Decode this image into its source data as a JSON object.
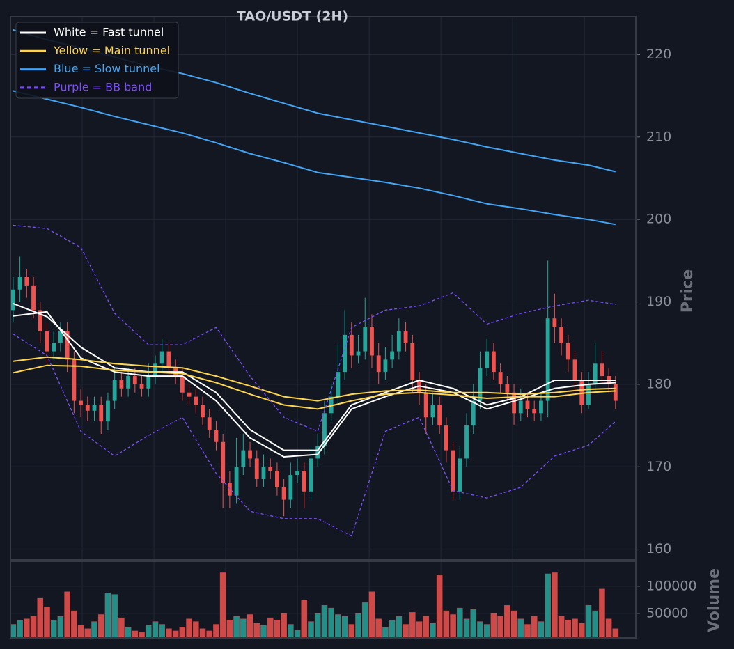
{
  "chart_data": {
    "type": "candlestick",
    "title": "TAO/USDT (2H)",
    "y_label": "Price",
    "ylim": [
      158.7,
      224.6
    ],
    "yticks": [
      160,
      170,
      180,
      190,
      200,
      210,
      220
    ],
    "xlim": [
      -0.4,
      92
    ],
    "xgrid": [
      10.2,
      20.8,
      31.4,
      42,
      52.6,
      63.2,
      73.8,
      84.4
    ],
    "grid": true,
    "up_color": "#26a69a",
    "down_color": "#ef5350",
    "open": [
      189,
      191.5,
      193,
      192,
      189,
      186.5,
      184,
      185,
      186.5,
      183,
      178,
      177.5,
      176.8,
      177.5,
      175.5,
      178,
      180.5,
      179.5,
      181,
      180,
      179.5,
      181,
      182.5,
      184,
      182,
      181,
      179,
      178.5,
      177.5,
      176,
      174.5,
      173,
      168,
      166.5,
      170,
      172,
      171,
      168.5,
      170,
      169.5,
      167.5,
      166,
      169,
      169.5,
      167,
      171,
      172.5,
      176.5,
      178.5,
      181.5,
      186,
      183.5,
      184,
      187,
      183.5,
      181.5,
      183,
      184,
      186.5,
      185,
      180.5,
      179,
      176,
      177.5,
      175,
      172,
      167,
      171,
      175,
      178,
      182,
      184,
      181.5,
      180,
      179,
      176.5,
      178,
      177,
      176.5,
      178,
      188,
      187,
      185,
      183,
      180.5,
      177.5,
      180,
      182.5,
      181,
      180
    ],
    "high": [
      193,
      195.5,
      194,
      193,
      190,
      187.5,
      186.5,
      187.5,
      187.5,
      184,
      179.5,
      178.5,
      178.5,
      178.5,
      179,
      182,
      181.5,
      182,
      182,
      181,
      182.5,
      183.5,
      185.5,
      185,
      183,
      182,
      180,
      179.5,
      178.5,
      177,
      175.5,
      174,
      169.5,
      173.5,
      174,
      173,
      172,
      171.5,
      171,
      170.5,
      168.5,
      170.5,
      171,
      170.5,
      172.5,
      174,
      178,
      180,
      185,
      189,
      187.5,
      186,
      190.5,
      188.5,
      185,
      184.5,
      186,
      188,
      187.5,
      186,
      181.5,
      180,
      179,
      178.5,
      176,
      173,
      172.5,
      176.5,
      180,
      184,
      185.5,
      185,
      182.5,
      181,
      180,
      179.5,
      179,
      178,
      179,
      195,
      191,
      188,
      186,
      184,
      181.5,
      181.5,
      185,
      184,
      182,
      181
    ],
    "low": [
      187.5,
      190,
      190.5,
      188,
      185,
      182.5,
      183,
      184,
      181.5,
      176.5,
      176,
      175.5,
      175.5,
      174,
      174.5,
      177,
      178.5,
      178.5,
      179,
      178.5,
      178.5,
      180,
      181.5,
      181,
      180,
      178,
      177.5,
      176.5,
      175,
      173.5,
      172,
      165,
      165,
      165.5,
      169,
      170,
      167.5,
      167.5,
      168.5,
      166.5,
      164,
      165,
      168,
      165,
      166,
      170,
      171.5,
      175.5,
      177.5,
      180.5,
      182,
      182.5,
      183,
      182,
      180,
      180.5,
      182,
      183,
      184,
      179,
      177.5,
      174,
      175,
      174,
      170.5,
      166,
      166,
      170,
      174,
      177,
      181,
      180.5,
      179,
      178,
      175,
      175.5,
      176,
      175.5,
      175.5,
      176,
      185,
      183.5,
      181.5,
      179,
      176.5,
      177,
      179,
      180,
      179,
      177
    ],
    "close": [
      191.5,
      193,
      192,
      189,
      186.5,
      184,
      185,
      186.5,
      183,
      178,
      177.5,
      176.8,
      177.5,
      175.5,
      178,
      180.5,
      179.5,
      181,
      180,
      179.5,
      181,
      182.5,
      184,
      182,
      181,
      179,
      178.5,
      177.5,
      176,
      174.5,
      173,
      168,
      166.5,
      170,
      172,
      171,
      168.5,
      170,
      169.5,
      167.5,
      166,
      169,
      169.5,
      167,
      171,
      172.5,
      176.5,
      178.5,
      181.5,
      186,
      183.5,
      184,
      187,
      183.5,
      181.5,
      183,
      184,
      186.5,
      185,
      180.5,
      179,
      176,
      177.5,
      175,
      172,
      167,
      171,
      175,
      178,
      182,
      184,
      181.5,
      180,
      179,
      176.5,
      178,
      177,
      176.5,
      178,
      188,
      187,
      185,
      183,
      180.5,
      177.5,
      180,
      182.5,
      181,
      180,
      178
    ],
    "line_x": [
      0,
      5,
      10,
      15,
      20,
      25,
      30,
      35,
      40,
      45,
      50,
      55,
      60,
      65,
      70,
      75,
      80,
      85,
      89
    ],
    "overlays": [
      {
        "name": "White = Fast tunnel",
        "color": "#ffffff",
        "dashed": false,
        "lines": [
          [
            189.8,
            188.2,
            184.5,
            182,
            181.5,
            181.5,
            179,
            174.5,
            172,
            172,
            177.5,
            179,
            180.5,
            179.5,
            177.5,
            178.5,
            180.5,
            180.5,
            180.5
          ],
          [
            188.3,
            188.8,
            183.2,
            181.5,
            181,
            181,
            178,
            173.5,
            171.2,
            171.5,
            177,
            178.5,
            179.8,
            179,
            177,
            178.2,
            179.5,
            180,
            180.2
          ]
        ]
      },
      {
        "name": "Yellow = Main tunnel",
        "color": "#ffd54f",
        "dashed": false,
        "lines": [
          [
            182.8,
            183.3,
            183,
            182.5,
            182.2,
            182,
            181,
            179.8,
            178.5,
            178,
            178.8,
            179.2,
            179.3,
            179,
            179,
            178.8,
            179,
            179.4,
            179.5
          ],
          [
            181.4,
            182.3,
            182.2,
            181.7,
            181.5,
            181.3,
            180.2,
            178.8,
            177.5,
            177,
            178,
            178.8,
            179,
            178.7,
            178.3,
            178.5,
            178.5,
            179,
            179.2
          ]
        ]
      },
      {
        "name": "Blue = Slow tunnel",
        "color": "#42a5f5",
        "dashed": false,
        "lines": [
          [
            223,
            221.8,
            220.8,
            219.7,
            218.6,
            217.7,
            216.6,
            215.3,
            214.1,
            212.9,
            212.1,
            211.3,
            210.5,
            209.7,
            208.8,
            208,
            207.2,
            206.6,
            205.8
          ],
          [
            215.6,
            214.6,
            213.6,
            212.5,
            211.5,
            210.5,
            209.3,
            208,
            206.9,
            205.7,
            205.1,
            204.5,
            203.8,
            202.9,
            201.9,
            201.3,
            200.6,
            200,
            199.4
          ]
        ]
      },
      {
        "name": "Purple = BB band",
        "color": "#7c4dff",
        "dashed": true,
        "lines": [
          [
            199.3,
            198.9,
            196.6,
            188.6,
            184.8,
            184.8,
            186.9,
            181,
            176,
            174.3,
            186.9,
            189,
            189.5,
            191.1,
            187.3,
            188.6,
            189.5,
            190.2,
            189.7
          ],
          [
            186.1,
            183.5,
            174.3,
            171.3,
            173.8,
            176,
            169.2,
            164.6,
            163.7,
            163.7,
            161.6,
            174.3,
            176,
            167.1,
            166.2,
            167.5,
            171.3,
            172.6,
            175.5
          ]
        ]
      }
    ],
    "volume": {
      "label": "Volume",
      "ylim": [
        5000,
        146000
      ],
      "yticks": [
        50000,
        100000
      ],
      "values": [
        30000,
        38000,
        40000,
        45000,
        78000,
        62000,
        38000,
        45000,
        90000,
        55000,
        28000,
        22000,
        35000,
        48000,
        88000,
        85000,
        42000,
        25000,
        18000,
        15000,
        28000,
        35000,
        30000,
        22000,
        18000,
        25000,
        40000,
        35000,
        22000,
        18000,
        30000,
        125000,
        38000,
        45000,
        40000,
        48000,
        32000,
        28000,
        42000,
        38000,
        50000,
        30000,
        20000,
        75000,
        35000,
        50000,
        65000,
        60000,
        48000,
        45000,
        30000,
        50000,
        70000,
        90000,
        40000,
        25000,
        38000,
        45000,
        30000,
        52000,
        35000,
        45000,
        32000,
        120000,
        55000,
        48000,
        60000,
        40000,
        58000,
        35000,
        30000,
        50000,
        45000,
        65000,
        55000,
        40000,
        30000,
        45000,
        35000,
        123000,
        125000,
        45000,
        38000,
        40000,
        32000,
        65000,
        55000,
        95000,
        40000,
        22000
      ]
    }
  }
}
